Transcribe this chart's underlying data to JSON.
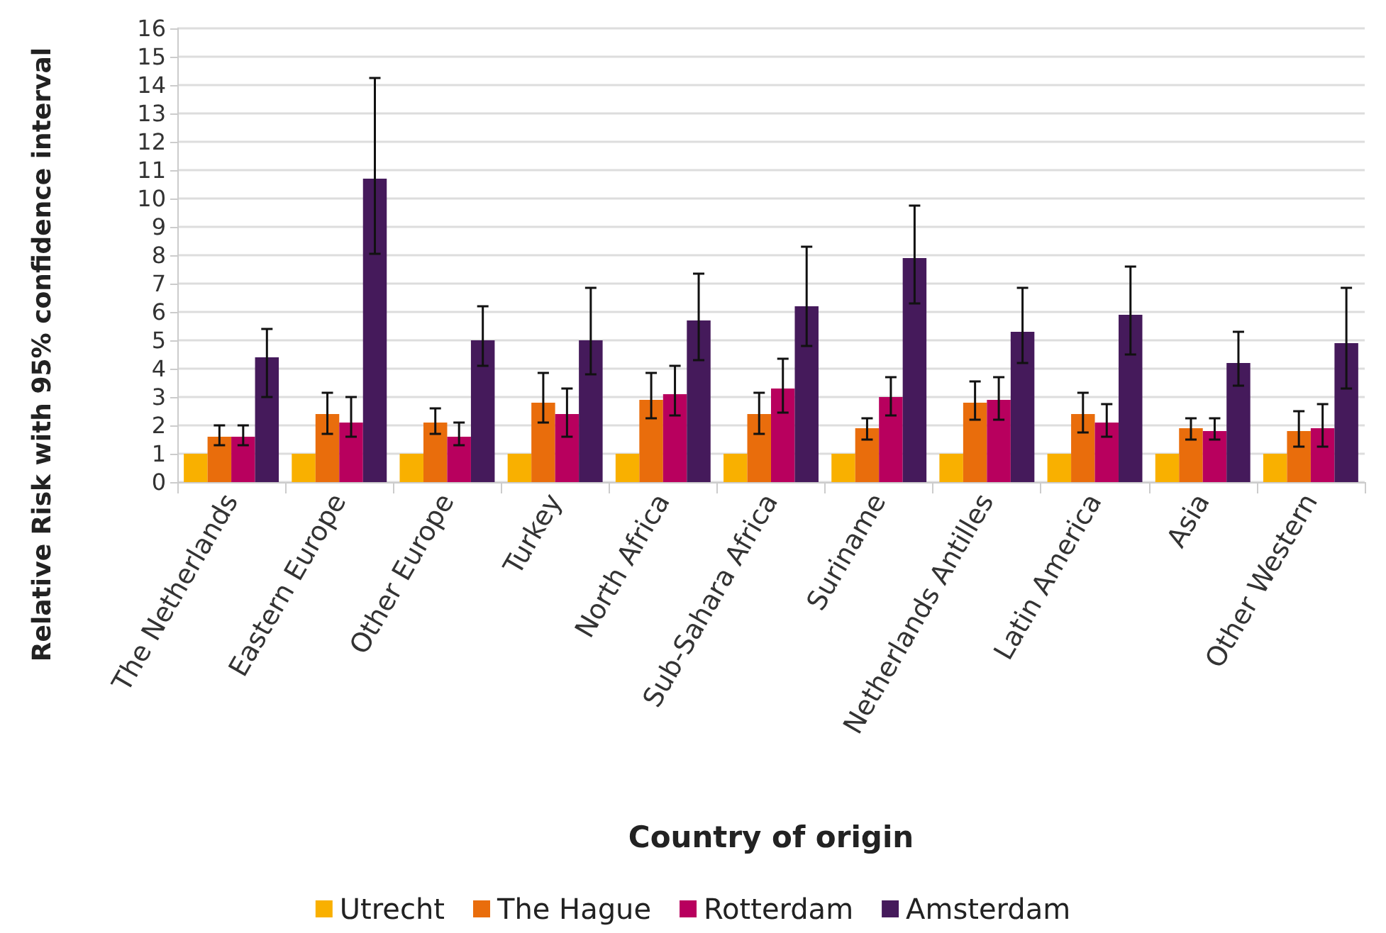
{
  "chart_data": {
    "type": "bar",
    "xlabel": "Country of origin",
    "ylabel": "Relative Risk with 95% confidence interval",
    "categories": [
      "The Netherlands",
      "Eastern Europe",
      "Other Europe",
      "Turkey",
      "North Africa",
      "Sub-Sahara Africa",
      "Suriname",
      "Netherlands Antilles",
      "Latin America",
      "Asia",
      "Other Western"
    ],
    "series": [
      {
        "name": "Utrecht",
        "color": "#f9b000",
        "values": [
          1,
          1,
          1,
          1,
          1,
          1,
          1,
          1,
          1,
          1,
          1
        ]
      },
      {
        "name": "The Hague",
        "color": "#e96d0c",
        "values": [
          1.6,
          2.4,
          2.1,
          2.8,
          2.9,
          2.4,
          1.9,
          2.8,
          2.4,
          1.9,
          1.8
        ],
        "errors": [
          [
            1.3,
            2.0
          ],
          [
            1.7,
            3.15
          ],
          [
            1.7,
            2.6
          ],
          [
            2.1,
            3.85
          ],
          [
            2.25,
            3.85
          ],
          [
            1.7,
            3.15
          ],
          [
            1.5,
            2.25
          ],
          [
            2.2,
            3.55
          ],
          [
            1.75,
            3.15
          ],
          [
            1.5,
            2.25
          ],
          [
            1.25,
            2.5
          ]
        ]
      },
      {
        "name": "Rotterdam",
        "color": "#b8005e",
        "values": [
          1.6,
          2.1,
          1.6,
          2.4,
          3.1,
          3.3,
          3.0,
          2.9,
          2.1,
          1.8,
          1.9
        ],
        "errors": [
          [
            1.3,
            2.0
          ],
          [
            1.6,
            3.0
          ],
          [
            1.3,
            2.1
          ],
          [
            1.6,
            3.3
          ],
          [
            2.35,
            4.1
          ],
          [
            2.45,
            4.35
          ],
          [
            2.35,
            3.7
          ],
          [
            2.2,
            3.7
          ],
          [
            1.6,
            2.75
          ],
          [
            1.5,
            2.25
          ],
          [
            1.25,
            2.75
          ]
        ]
      },
      {
        "name": "Amsterdam",
        "color": "#451a5b",
        "values": [
          4.4,
          10.7,
          5.0,
          5.0,
          5.7,
          6.2,
          7.9,
          5.3,
          5.9,
          4.2,
          4.9
        ],
        "errors": [
          [
            3.0,
            5.4
          ],
          [
            8.05,
            14.25
          ],
          [
            4.1,
            6.2
          ],
          [
            3.8,
            6.85
          ],
          [
            4.3,
            7.35
          ],
          [
            4.8,
            8.3
          ],
          [
            6.3,
            9.75
          ],
          [
            4.2,
            6.85
          ],
          [
            4.5,
            7.6
          ],
          [
            3.4,
            5.3
          ],
          [
            3.3,
            6.85
          ]
        ]
      }
    ],
    "ylim": [
      0,
      16
    ],
    "yticks": [
      0,
      1,
      2,
      3,
      4,
      5,
      6,
      7,
      8,
      9,
      10,
      11,
      12,
      13,
      14,
      15,
      16
    ],
    "grid": "y",
    "legend": "bottom"
  }
}
